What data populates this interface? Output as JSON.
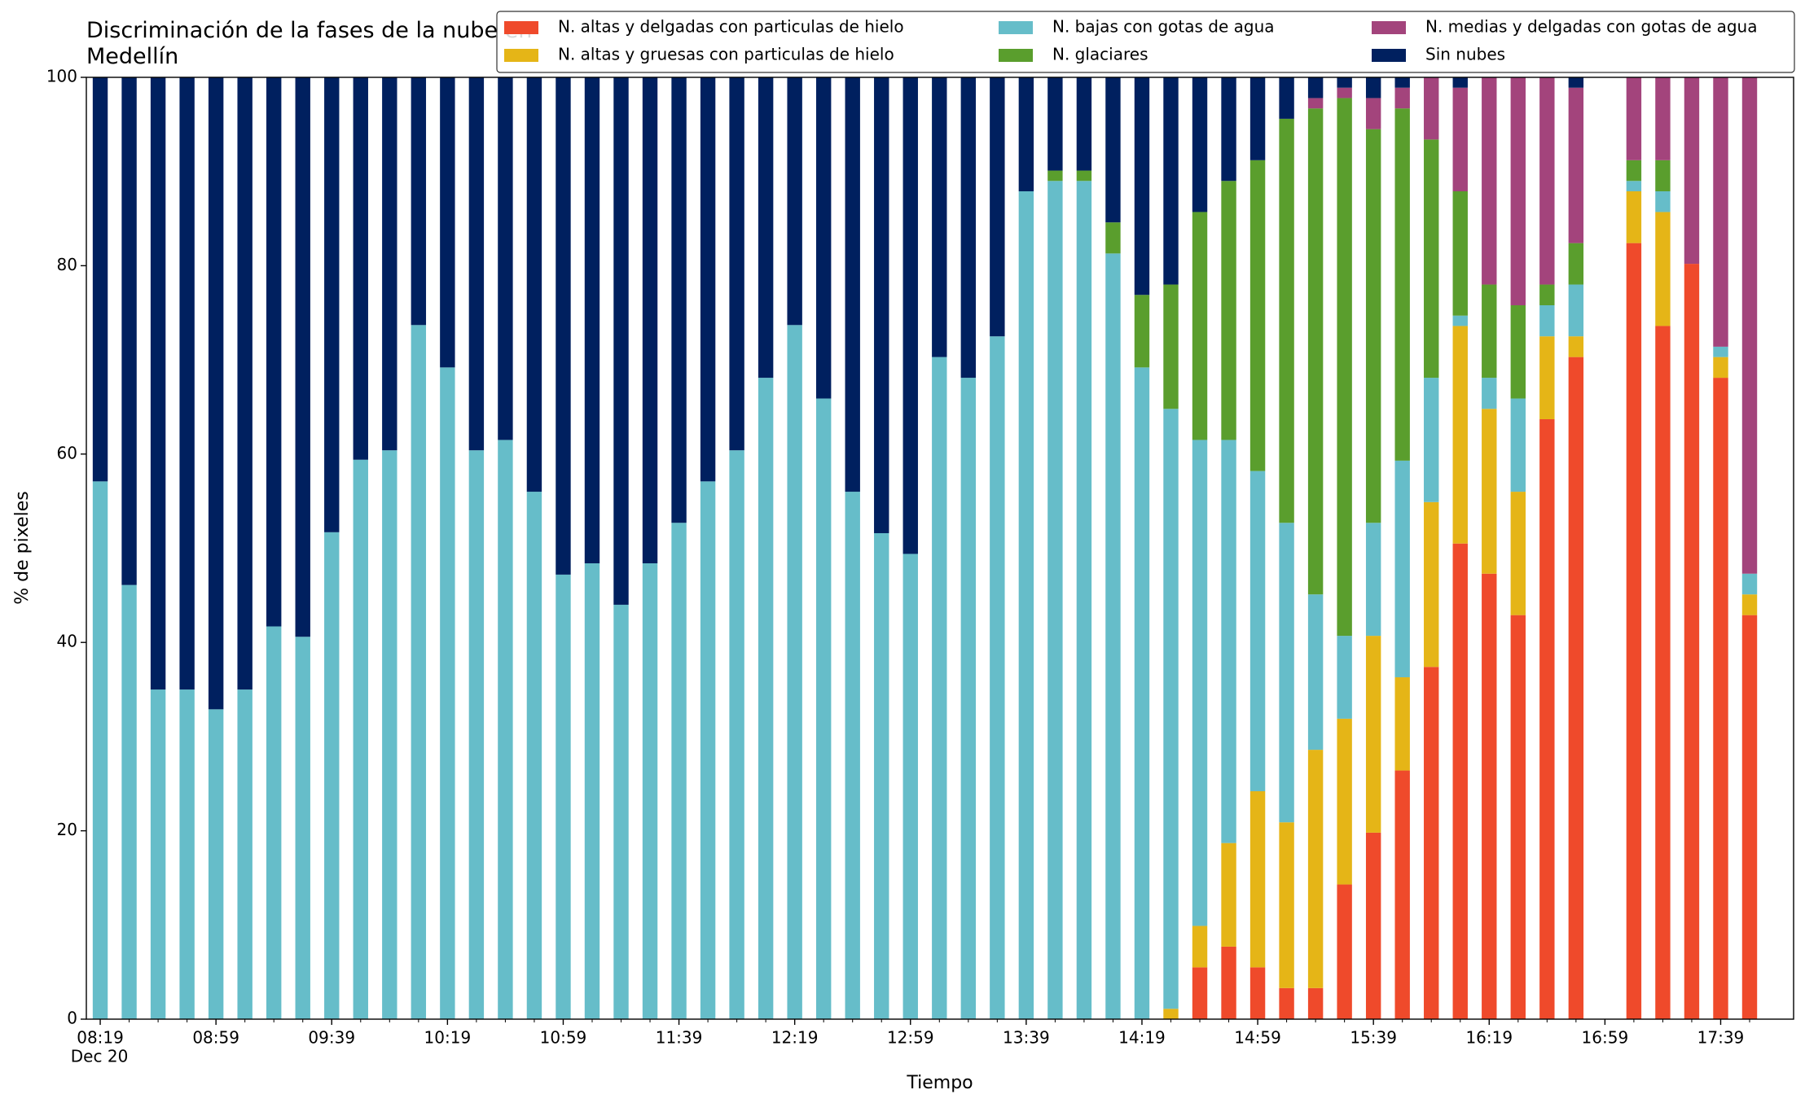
{
  "chart_data": {
    "type": "stacked_bar",
    "title": "Discriminación de la fases de la nube en Medellín",
    "x_label": "Tiempo",
    "y_label": "% de pixeles",
    "date_label": "Dec 20",
    "categories": [
      "08:19",
      null,
      null,
      null,
      "08:59",
      null,
      null,
      null,
      "09:39",
      null,
      null,
      null,
      "10:19",
      null,
      null,
      null,
      "10:59",
      null,
      null,
      null,
      "11:39",
      null,
      null,
      null,
      "12:19",
      null,
      null,
      null,
      "12:59",
      null,
      null,
      null,
      "13:39",
      null,
      null,
      null,
      "14:19",
      null,
      null,
      null,
      "14:59",
      null,
      null,
      null,
      "15:39",
      null,
      null,
      null,
      "16:19",
      null,
      null,
      null,
      "16:59",
      null,
      null,
      null,
      "17:39",
      null
    ],
    "ylim": [
      0,
      100
    ],
    "yticks": [
      0,
      20,
      40,
      60,
      80,
      100
    ],
    "legend": "top-right",
    "series": [
      {
        "name": "N. altas y delgadas con particulas de hielo",
        "color": "#ef4a2b",
        "values": [
          0,
          0,
          0,
          0,
          0,
          0,
          0,
          0,
          0,
          0,
          0,
          0,
          0,
          0,
          0,
          0,
          0,
          0,
          0,
          0,
          0,
          0,
          0,
          0,
          0,
          0,
          0,
          0,
          0,
          0,
          0,
          0,
          0,
          0,
          0,
          0,
          0,
          0,
          5.5,
          7.7,
          5.5,
          3.3,
          3.3,
          14.3,
          19.8,
          26.4,
          37.4,
          50.5,
          47.3,
          42.9,
          63.7,
          70.3,
          null,
          82.4,
          73.6,
          80.2,
          68.1,
          42.9
        ]
      },
      {
        "name": "N. altas y gruesas con particulas de hielo",
        "color": "#e5b517",
        "values": [
          0,
          0,
          0,
          0,
          0,
          0,
          0,
          0,
          0,
          0,
          0,
          0,
          0,
          0,
          0,
          0,
          0,
          0,
          0,
          0,
          0,
          0,
          0,
          0,
          0,
          0,
          0,
          0,
          0,
          0,
          0,
          0,
          0,
          0,
          0,
          0,
          0,
          1.1,
          4.4,
          11.0,
          18.7,
          17.6,
          25.3,
          17.6,
          20.9,
          9.9,
          17.5,
          23.1,
          17.5,
          13.1,
          8.8,
          2.2,
          null,
          5.5,
          12.1,
          0,
          2.2,
          2.2
        ]
      },
      {
        "name": "N. bajas con gotas de agua",
        "color": "#66bdc9",
        "values": [
          57.1,
          46.1,
          35.0,
          35.0,
          32.9,
          35.0,
          41.7,
          40.6,
          51.7,
          59.4,
          60.4,
          73.7,
          69.2,
          60.4,
          61.5,
          56.0,
          47.2,
          48.4,
          44.0,
          48.4,
          52.7,
          57.1,
          60.4,
          68.1,
          73.7,
          65.9,
          56.0,
          51.6,
          49.4,
          70.3,
          68.1,
          72.5,
          87.9,
          89.0,
          89.0,
          81.3,
          69.2,
          63.7,
          51.6,
          42.8,
          34.0,
          31.8,
          16.5,
          8.8,
          12.0,
          23.0,
          13.2,
          1.1,
          3.3,
          9.9,
          3.3,
          5.5,
          null,
          1.1,
          2.2,
          0,
          1.1,
          2.2
        ]
      },
      {
        "name": "N. glaciares",
        "color": "#5a9e2d",
        "values": [
          0,
          0,
          0,
          0,
          0,
          0,
          0,
          0,
          0,
          0,
          0,
          0,
          0,
          0,
          0,
          0,
          0,
          0,
          0,
          0,
          0,
          0,
          0,
          0,
          0,
          0,
          0,
          0,
          0,
          0,
          0,
          0,
          0,
          1.1,
          1.1,
          3.3,
          7.7,
          13.2,
          24.2,
          27.5,
          33.0,
          42.9,
          51.6,
          57.1,
          41.8,
          37.4,
          25.3,
          13.2,
          9.9,
          9.9,
          2.2,
          4.4,
          null,
          2.2,
          3.3,
          0,
          0,
          0
        ]
      },
      {
        "name": "N. medias y delgadas con gotas de agua",
        "color": "#a3447c",
        "values": [
          0,
          0,
          0,
          0,
          0,
          0,
          0,
          0,
          0,
          0,
          0,
          0,
          0,
          0,
          0,
          0,
          0,
          0,
          0,
          0,
          0,
          0,
          0,
          0,
          0,
          0,
          0,
          0,
          0,
          0,
          0,
          0,
          0,
          0,
          0,
          0,
          0,
          0,
          0,
          0,
          0,
          0,
          1.1,
          1.1,
          3.3,
          2.2,
          6.6,
          11.0,
          22.0,
          24.2,
          22.0,
          16.5,
          null,
          8.8,
          8.8,
          19.8,
          28.6,
          52.7
        ]
      },
      {
        "name": "Sin nubes",
        "color": "#00205f",
        "values": [
          42.9,
          53.9,
          65.0,
          65.0,
          67.1,
          65.0,
          58.3,
          59.4,
          48.3,
          40.6,
          39.6,
          26.3,
          30.8,
          39.6,
          38.5,
          44.0,
          52.8,
          51.6,
          56.0,
          51.6,
          47.3,
          42.9,
          39.6,
          31.9,
          26.3,
          34.1,
          44.0,
          48.4,
          50.6,
          29.7,
          31.9,
          27.5,
          12.1,
          9.9,
          9.9,
          15.4,
          23.1,
          22.0,
          14.3,
          11.0,
          8.8,
          4.4,
          2.2,
          1.1,
          2.2,
          1.1,
          0,
          1.1,
          0,
          0,
          0,
          1.1,
          null,
          0,
          0,
          0,
          0,
          0
        ]
      }
    ]
  }
}
